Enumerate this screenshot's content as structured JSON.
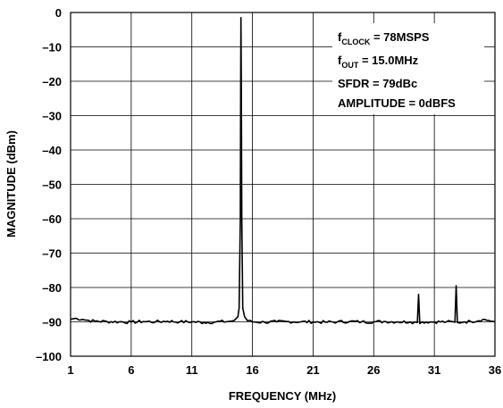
{
  "chart_data": {
    "type": "line",
    "title": "",
    "xlabel": "FREQUENCY (MHz)",
    "ylabel": "MAGNITUDE (dBm)",
    "xlim": [
      1,
      36
    ],
    "ylim": [
      -100,
      0
    ],
    "grid": true,
    "xticks": [
      "1",
      "6",
      "11",
      "16",
      "21",
      "26",
      "31",
      "36"
    ],
    "yticks": [
      "0",
      "–10",
      "–20",
      "–30",
      "–40",
      "–50",
      "–60",
      "–70",
      "–80",
      "–90",
      "–100"
    ],
    "legend": {
      "placement": "top-right",
      "lines": [
        {
          "main": "f",
          "sub": "CLOCK",
          "rest": " = 78MSPS"
        },
        {
          "main": "f",
          "sub": "OUT",
          "rest": " = 15.0MHz"
        },
        {
          "main": "SFDR = 79dBc",
          "sub": "",
          "rest": ""
        },
        {
          "main": "AMPLITUDE = 0dBFS",
          "sub": "",
          "rest": ""
        }
      ]
    },
    "series": [
      {
        "color": "#000000",
        "noise_floor": -90,
        "points": [
          [
            1.0,
            -89.2
          ],
          [
            1.5,
            -89.0
          ],
          [
            2.0,
            -89.3
          ],
          [
            2.5,
            -89.6
          ],
          [
            3.0,
            -89.8
          ],
          [
            4.0,
            -89.9
          ],
          [
            5.0,
            -90.0
          ],
          [
            6.0,
            -90.1
          ],
          [
            7.0,
            -89.9
          ],
          [
            8.0,
            -90.0
          ],
          [
            9.0,
            -89.8
          ],
          [
            10.0,
            -90.0
          ],
          [
            11.0,
            -90.0
          ],
          [
            12.0,
            -90.2
          ],
          [
            13.0,
            -90.0
          ],
          [
            14.0,
            -89.9
          ],
          [
            14.5,
            -89.6
          ],
          [
            14.8,
            -88.5
          ],
          [
            14.9,
            -86.0
          ],
          [
            15.0,
            -60.0
          ],
          [
            15.03,
            -20.0
          ],
          [
            15.05,
            -1.5
          ],
          [
            15.08,
            -20.0
          ],
          [
            15.12,
            -60.0
          ],
          [
            15.2,
            -86.0
          ],
          [
            15.35,
            -88.5
          ],
          [
            15.6,
            -89.7
          ],
          [
            16.0,
            -90.0
          ],
          [
            17.0,
            -90.1
          ],
          [
            18.0,
            -90.0
          ],
          [
            19.0,
            -89.9
          ],
          [
            20.0,
            -90.0
          ],
          [
            21.0,
            -90.0
          ],
          [
            22.0,
            -90.1
          ],
          [
            23.0,
            -90.0
          ],
          [
            24.0,
            -89.9
          ],
          [
            25.0,
            -90.0
          ],
          [
            26.0,
            -90.0
          ],
          [
            27.0,
            -89.9
          ],
          [
            28.0,
            -90.0
          ],
          [
            29.0,
            -90.0
          ],
          [
            29.6,
            -90.2
          ],
          [
            29.7,
            -82.0
          ],
          [
            29.8,
            -90.5
          ],
          [
            30.0,
            -90.0
          ],
          [
            31.0,
            -90.0
          ],
          [
            32.0,
            -90.0
          ],
          [
            32.7,
            -90.1
          ],
          [
            32.8,
            -79.5
          ],
          [
            32.9,
            -90.2
          ],
          [
            33.5,
            -90.0
          ],
          [
            34.0,
            -89.9
          ],
          [
            35.0,
            -89.3
          ],
          [
            35.5,
            -89.6
          ],
          [
            36.0,
            -90.0
          ]
        ]
      }
    ]
  }
}
